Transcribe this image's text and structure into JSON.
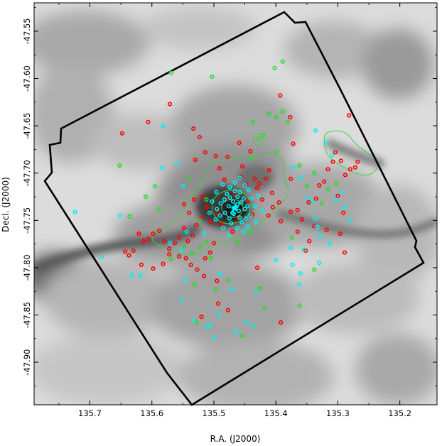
{
  "chart_data": {
    "type": "scatter",
    "title": "",
    "xlabel": "R.A. (J2000)",
    "ylabel": "Decl. (J2000)",
    "xlim": [
      135.79,
      135.14
    ],
    "ylim": [
      -47.945,
      -47.52
    ],
    "x_ticks": [
      135.7,
      135.6,
      135.5,
      135.4,
      135.3,
      135.2
    ],
    "x_tick_labels": [
      "135.7",
      "135.6",
      "135.5",
      "135.4",
      "135.3",
      "135.2"
    ],
    "y_ticks": [
      -47.55,
      -47.6,
      -47.65,
      -47.7,
      -47.75,
      -47.8,
      -47.85,
      -47.9
    ],
    "y_tick_labels": [
      "-47.55",
      "-47.60",
      "-47.65",
      "-47.70",
      "-47.75",
      "-47.80",
      "-47.85",
      "-47.90"
    ],
    "background": "grayscale sky image",
    "grid": false,
    "legend": "none",
    "colors": {
      "red_sources": "#ff0000",
      "green_sources": "#22dd22",
      "cyan_sources": "#00f0f0",
      "contour": "#44cc44",
      "field_outline": "#000000"
    },
    "series": [
      {
        "color": "red",
        "points": [
          [
            135.648,
            -47.658
          ],
          [
            135.606,
            -47.646
          ],
          [
            135.571,
            -47.627
          ],
          [
            135.533,
            -47.653
          ],
          [
            135.523,
            -47.662
          ],
          [
            135.53,
            -47.686
          ],
          [
            135.514,
            -47.678
          ],
          [
            135.497,
            -47.682
          ],
          [
            135.491,
            -47.695
          ],
          [
            135.483,
            -47.707
          ],
          [
            135.478,
            -47.683
          ],
          [
            135.459,
            -47.668
          ],
          [
            135.454,
            -47.693
          ],
          [
            135.441,
            -47.677
          ],
          [
            135.427,
            -47.711
          ],
          [
            135.416,
            -47.706
          ],
          [
            135.411,
            -47.697
          ],
          [
            135.406,
            -47.721
          ],
          [
            135.395,
            -47.731
          ],
          [
            135.393,
            -47.618
          ],
          [
            135.377,
            -47.641
          ],
          [
            135.372,
            -47.669
          ],
          [
            135.365,
            -47.739
          ],
          [
            135.358,
            -47.749
          ],
          [
            135.347,
            -47.731
          ],
          [
            135.335,
            -47.727
          ],
          [
            135.33,
            -47.713
          ],
          [
            135.322,
            -47.709
          ],
          [
            135.308,
            -47.688
          ],
          [
            135.316,
            -47.696
          ],
          [
            135.304,
            -47.678
          ],
          [
            135.295,
            -47.687
          ],
          [
            135.288,
            -47.702
          ],
          [
            135.28,
            -47.696
          ],
          [
            135.272,
            -47.694
          ],
          [
            135.268,
            -47.688
          ],
          [
            135.282,
            -47.639
          ],
          [
            135.3,
            -47.724
          ],
          [
            135.291,
            -47.742
          ],
          [
            135.296,
            -47.764
          ],
          [
            135.318,
            -47.76
          ],
          [
            135.338,
            -47.756
          ],
          [
            135.346,
            -47.772
          ],
          [
            135.352,
            -47.782
          ],
          [
            135.289,
            -47.784
          ],
          [
            135.365,
            -47.762
          ],
          [
            135.376,
            -47.741
          ],
          [
            135.392,
            -47.751
          ],
          [
            135.405,
            -47.736
          ],
          [
            135.412,
            -47.745
          ],
          [
            135.422,
            -47.728
          ],
          [
            135.43,
            -47.716
          ],
          [
            135.438,
            -47.744
          ],
          [
            135.445,
            -47.73
          ],
          [
            135.46,
            -47.748
          ],
          [
            135.47,
            -47.762
          ],
          [
            135.488,
            -47.754
          ],
          [
            135.494,
            -47.742
          ],
          [
            135.505,
            -47.752
          ],
          [
            135.512,
            -47.736
          ],
          [
            135.52,
            -47.748
          ],
          [
            135.528,
            -47.755
          ],
          [
            135.534,
            -47.766
          ],
          [
            135.542,
            -47.772
          ],
          [
            135.548,
            -47.758
          ],
          [
            135.556,
            -47.768
          ],
          [
            135.563,
            -47.774
          ],
          [
            135.572,
            -47.78
          ],
          [
            135.58,
            -47.772
          ],
          [
            135.588,
            -47.761
          ],
          [
            135.598,
            -47.764
          ],
          [
            135.606,
            -47.77
          ],
          [
            135.614,
            -47.772
          ],
          [
            135.621,
            -47.764
          ],
          [
            135.63,
            -47.782
          ],
          [
            135.637,
            -47.787
          ],
          [
            135.643,
            -47.783
          ],
          [
            135.617,
            -47.797
          ],
          [
            135.598,
            -47.801
          ],
          [
            135.582,
            -47.796
          ],
          [
            135.572,
            -47.786
          ],
          [
            135.556,
            -47.788
          ],
          [
            135.545,
            -47.79
          ],
          [
            135.537,
            -47.797
          ],
          [
            135.527,
            -47.802
          ],
          [
            135.516,
            -47.809
          ],
          [
            135.514,
            -47.79
          ],
          [
            135.506,
            -47.784
          ],
          [
            135.5,
            -47.774
          ],
          [
            135.532,
            -47.728
          ],
          [
            135.518,
            -47.725
          ],
          [
            135.54,
            -47.742
          ],
          [
            135.548,
            -47.733
          ],
          [
            135.478,
            -47.727
          ],
          [
            135.466,
            -47.723
          ],
          [
            135.495,
            -47.814
          ],
          [
            135.493,
            -47.838
          ],
          [
            135.52,
            -47.852
          ],
          [
            135.477,
            -47.845
          ],
          [
            135.43,
            -47.8
          ],
          [
            135.392,
            -47.858
          ],
          [
            135.376,
            -47.706
          ],
          [
            135.434,
            -47.706
          ],
          [
            135.448,
            -47.712
          ],
          [
            135.457,
            -47.704
          ]
        ]
      },
      {
        "color": "green",
        "points": [
          [
            135.569,
            -47.594
          ],
          [
            135.503,
            -47.598
          ],
          [
            135.402,
            -47.589
          ],
          [
            135.389,
            -47.582
          ],
          [
            135.411,
            -47.637
          ],
          [
            135.389,
            -47.635
          ],
          [
            135.381,
            -47.646
          ],
          [
            135.399,
            -47.641
          ],
          [
            135.437,
            -47.646
          ],
          [
            135.428,
            -47.664
          ],
          [
            135.42,
            -47.66
          ],
          [
            135.438,
            -47.684
          ],
          [
            135.398,
            -47.678
          ],
          [
            135.362,
            -47.692
          ],
          [
            135.338,
            -47.7
          ],
          [
            135.326,
            -47.732
          ],
          [
            135.315,
            -47.717
          ],
          [
            135.302,
            -47.711
          ],
          [
            135.35,
            -47.714
          ],
          [
            135.442,
            -47.762
          ],
          [
            135.462,
            -47.773
          ],
          [
            135.512,
            -47.773
          ],
          [
            135.522,
            -47.778
          ],
          [
            135.535,
            -47.784
          ],
          [
            135.548,
            -47.777
          ],
          [
            135.569,
            -47.791
          ],
          [
            135.588,
            -47.738
          ],
          [
            135.61,
            -47.725
          ],
          [
            135.636,
            -47.746
          ],
          [
            135.652,
            -47.692
          ],
          [
            135.595,
            -47.714
          ],
          [
            135.541,
            -47.706
          ],
          [
            135.523,
            -47.75
          ],
          [
            135.531,
            -47.818
          ],
          [
            135.505,
            -47.79
          ],
          [
            135.497,
            -47.823
          ],
          [
            135.476,
            -47.813
          ],
          [
            135.426,
            -47.822
          ],
          [
            135.418,
            -47.843
          ],
          [
            135.362,
            -47.84
          ],
          [
            135.338,
            -47.802
          ],
          [
            135.374,
            -47.768
          ],
          [
            135.455,
            -47.872
          ],
          [
            135.528,
            -47.858
          ],
          [
            135.512,
            -47.728
          ]
        ]
      },
      {
        "color": "cyan",
        "points": [
          [
            135.724,
            -47.741
          ],
          [
            135.681,
            -47.789
          ],
          [
            135.651,
            -47.745
          ],
          [
            135.632,
            -47.808
          ],
          [
            135.618,
            -47.808
          ],
          [
            135.582,
            -47.65
          ],
          [
            135.584,
            -47.694
          ],
          [
            135.56,
            -47.69
          ],
          [
            135.55,
            -47.714
          ],
          [
            135.546,
            -47.813
          ],
          [
            135.552,
            -47.834
          ],
          [
            135.533,
            -47.856
          ],
          [
            135.512,
            -47.862
          ],
          [
            135.506,
            -47.861
          ],
          [
            135.5,
            -47.874
          ],
          [
            135.492,
            -47.85
          ],
          [
            135.464,
            -47.868
          ],
          [
            135.471,
            -47.823
          ],
          [
            135.49,
            -47.807
          ],
          [
            135.448,
            -47.857
          ],
          [
            135.437,
            -47.861
          ],
          [
            135.432,
            -47.826
          ],
          [
            135.4,
            -47.792
          ],
          [
            135.373,
            -47.797
          ],
          [
            135.376,
            -47.779
          ],
          [
            135.355,
            -47.781
          ],
          [
            135.36,
            -47.806
          ],
          [
            135.34,
            -47.73
          ],
          [
            135.337,
            -47.748
          ],
          [
            135.333,
            -47.757
          ],
          [
            135.329,
            -47.767
          ],
          [
            135.349,
            -47.726
          ],
          [
            135.36,
            -47.705
          ],
          [
            135.372,
            -47.694
          ],
          [
            135.336,
            -47.655
          ],
          [
            135.319,
            -47.668
          ],
          [
            135.309,
            -47.681
          ],
          [
            135.303,
            -47.728
          ],
          [
            135.295,
            -47.72
          ],
          [
            135.289,
            -47.736
          ],
          [
            135.281,
            -47.75
          ],
          [
            135.313,
            -47.775
          ],
          [
            135.33,
            -47.795
          ],
          [
            135.362,
            -47.818
          ],
          [
            135.544,
            -47.762
          ],
          [
            135.553,
            -47.782
          ],
          [
            135.571,
            -47.774
          ],
          [
            135.516,
            -47.764
          ],
          [
            135.496,
            -47.72
          ],
          [
            135.486,
            -47.712
          ],
          [
            135.474,
            -47.715
          ],
          [
            135.466,
            -47.719
          ],
          [
            135.458,
            -47.72
          ],
          [
            135.452,
            -47.727
          ],
          [
            135.446,
            -47.735
          ],
          [
            135.441,
            -47.745
          ],
          [
            135.45,
            -47.738
          ],
          [
            135.456,
            -47.731
          ],
          [
            135.462,
            -47.733
          ],
          [
            135.469,
            -47.73
          ],
          [
            135.476,
            -47.735
          ],
          [
            135.483,
            -47.728
          ],
          [
            135.489,
            -47.732
          ],
          [
            135.495,
            -47.738
          ],
          [
            135.49,
            -47.745
          ],
          [
            135.482,
            -47.742
          ],
          [
            135.475,
            -47.748
          ],
          [
            135.468,
            -47.743
          ],
          [
            135.46,
            -47.74
          ],
          [
            135.455,
            -47.752
          ],
          [
            135.448,
            -47.748
          ],
          [
            135.44,
            -47.727
          ],
          [
            135.434,
            -47.735
          ],
          [
            135.428,
            -47.724
          ],
          [
            135.422,
            -47.74
          ],
          [
            135.479,
            -47.722
          ],
          [
            135.466,
            -47.71
          ],
          [
            135.458,
            -47.705
          ],
          [
            135.45,
            -47.713
          ],
          [
            135.444,
            -47.718
          ],
          [
            135.497,
            -47.749
          ],
          [
            135.503,
            -47.73
          ],
          [
            135.507,
            -47.742
          ],
          [
            135.472,
            -47.753
          ],
          [
            135.462,
            -47.758
          ],
          [
            135.485,
            -47.758
          ],
          [
            135.476,
            -47.766
          ],
          [
            135.452,
            -47.762
          ],
          [
            135.432,
            -47.752
          ],
          [
            135.468,
            -47.737
          ],
          [
            135.462,
            -47.725
          ],
          [
            135.474,
            -47.726
          ],
          [
            135.458,
            -47.747
          ],
          [
            135.47,
            -47.742
          ],
          [
            135.446,
            -47.757
          ]
        ]
      }
    ],
    "cluster_center_marker": {
      "color": "cyan",
      "shape": "star",
      "point": [
        135.466,
        -47.737
      ]
    }
  }
}
